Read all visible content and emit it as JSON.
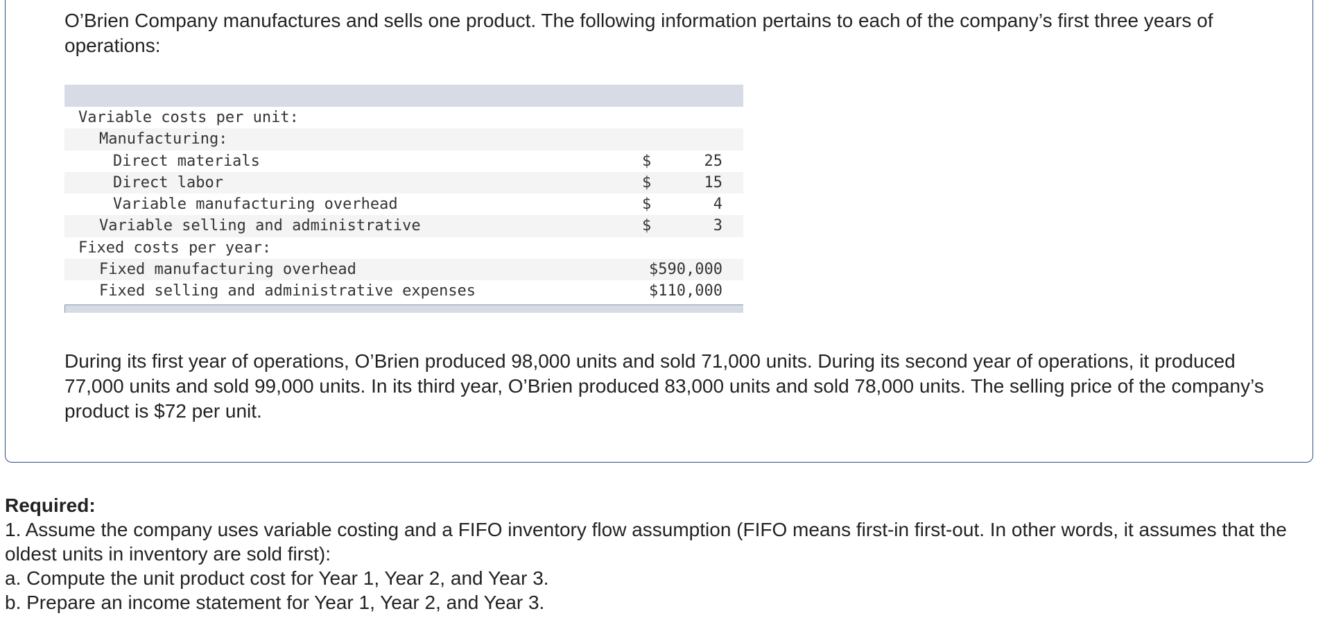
{
  "intro": "O’Brien Company manufactures and sells one product. The following information pertains to each of the company’s first three years of operations:",
  "table": {
    "rows": [
      {
        "label": "Variable costs per unit:",
        "currency": "",
        "amount": ""
      },
      {
        "label": "Manufacturing:",
        "currency": "",
        "amount": ""
      },
      {
        "label": "Direct materials",
        "currency": "$",
        "amount": "25"
      },
      {
        "label": "Direct labor",
        "currency": "$",
        "amount": "15"
      },
      {
        "label": "Variable manufacturing overhead",
        "currency": "$",
        "amount": "4"
      },
      {
        "label": "Variable selling and administrative",
        "currency": "$",
        "amount": "3"
      },
      {
        "label": "Fixed costs per year:",
        "currency": "",
        "amount": ""
      },
      {
        "label": "Fixed manufacturing overhead",
        "currency": "",
        "amount": "$590,000"
      },
      {
        "label": "Fixed selling and administrative expenses",
        "currency": "",
        "amount": "$110,000"
      }
    ]
  },
  "paragraph2": "During its first year of operations, O’Brien produced 98,000 units and sold 71,000 units. During its second year of operations, it produced 77,000 units and sold 99,000 units. In its third year, O’Brien produced 83,000 units and sold 78,000 units. The selling price of the company’s product is $72 per unit.",
  "required": {
    "title": "Required:",
    "lines": [
      "1. Assume the company uses variable costing and a FIFO inventory flow assumption (FIFO means first-in first-out. In other words, it assumes that the oldest units in inventory are sold first):",
      "a. Compute the unit product cost for Year 1, Year 2, and Year 3.",
      "b. Prepare an income statement for Year 1, Year 2, and Year 3."
    ]
  }
}
